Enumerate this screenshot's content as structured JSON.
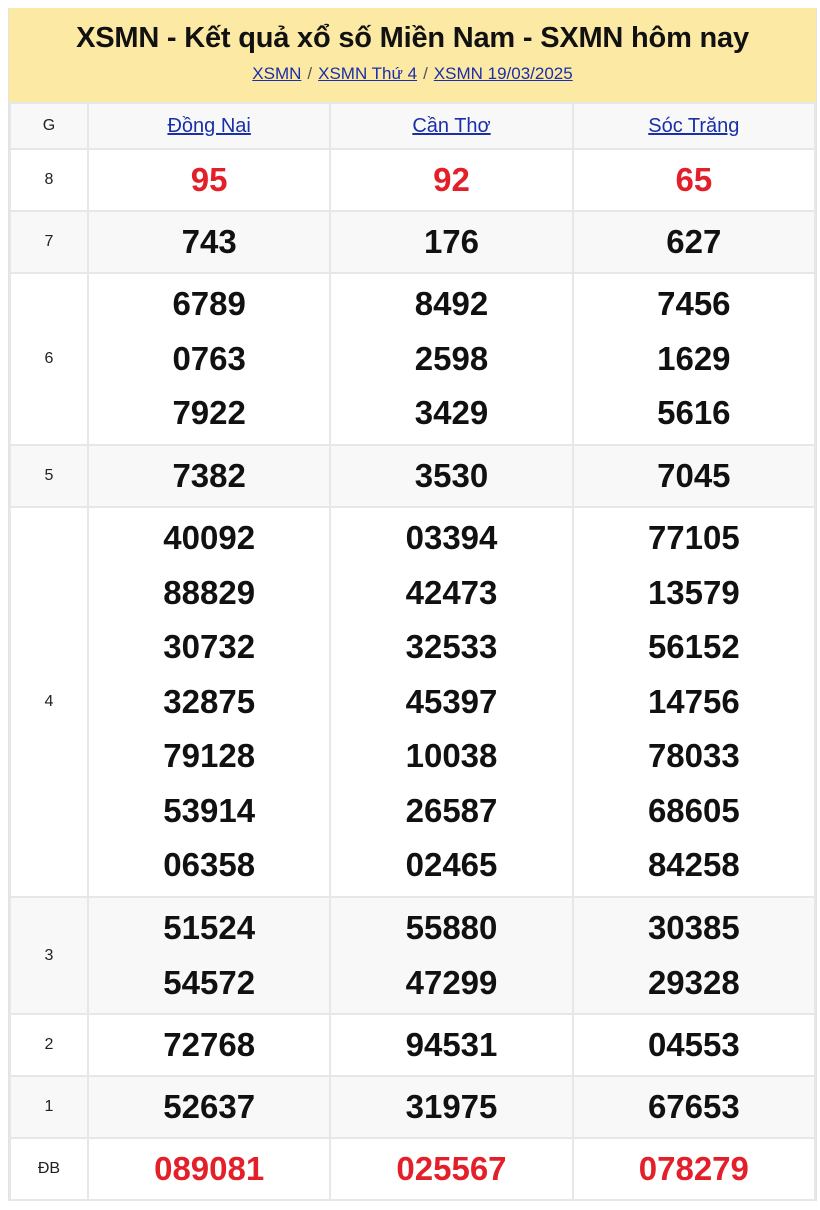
{
  "header": {
    "title": "XSMN - Kết quả xổ số Miền Nam - SXMN hôm nay",
    "breadcrumb": [
      "XSMN",
      "XSMN Thứ 4",
      "XSMN 19/03/2025"
    ],
    "separator": "/"
  },
  "table": {
    "prize_header": "G",
    "provinces": [
      "Đồng Nai",
      "Cần Thơ",
      "Sóc Trăng"
    ],
    "rows": [
      {
        "prize": "8",
        "highlight": true,
        "values": [
          [
            "95"
          ],
          [
            "92"
          ],
          [
            "65"
          ]
        ]
      },
      {
        "prize": "7",
        "values": [
          [
            "743"
          ],
          [
            "176"
          ],
          [
            "627"
          ]
        ]
      },
      {
        "prize": "6",
        "values": [
          [
            "6789",
            "0763",
            "7922"
          ],
          [
            "8492",
            "2598",
            "3429"
          ],
          [
            "7456",
            "1629",
            "5616"
          ]
        ]
      },
      {
        "prize": "5",
        "values": [
          [
            "7382"
          ],
          [
            "3530"
          ],
          [
            "7045"
          ]
        ]
      },
      {
        "prize": "4",
        "values": [
          [
            "40092",
            "88829",
            "30732",
            "32875",
            "79128",
            "53914",
            "06358"
          ],
          [
            "03394",
            "42473",
            "32533",
            "45397",
            "10038",
            "26587",
            "02465"
          ],
          [
            "77105",
            "13579",
            "56152",
            "14756",
            "78033",
            "68605",
            "84258"
          ]
        ]
      },
      {
        "prize": "3",
        "values": [
          [
            "51524",
            "54572"
          ],
          [
            "55880",
            "47299"
          ],
          [
            "30385",
            "29328"
          ]
        ]
      },
      {
        "prize": "2",
        "values": [
          [
            "72768"
          ],
          [
            "94531"
          ],
          [
            "04553"
          ]
        ]
      },
      {
        "prize": "1",
        "values": [
          [
            "52637"
          ],
          [
            "31975"
          ],
          [
            "67653"
          ]
        ]
      },
      {
        "prize": "ĐB",
        "highlight": true,
        "values": [
          [
            "089081"
          ],
          [
            "025567"
          ],
          [
            "078279"
          ]
        ]
      }
    ]
  },
  "colors": {
    "header_bg": "#fce9a4",
    "link": "#1a2fa8",
    "highlight": "#e3202a"
  }
}
